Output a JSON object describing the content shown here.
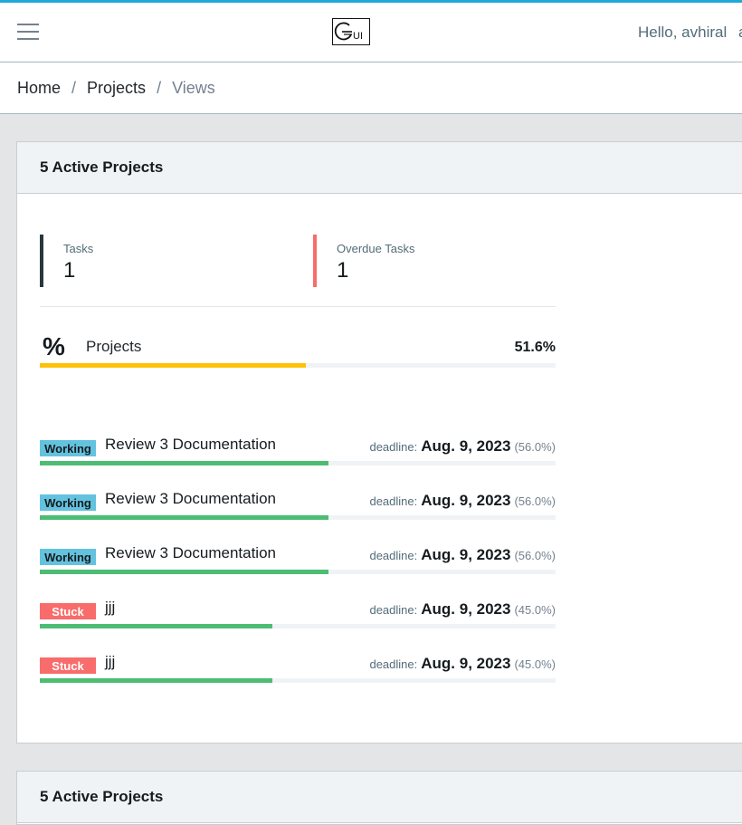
{
  "header": {
    "logo_text": "GUI",
    "greeting": "Hello, avhiral",
    "greeting_overflow": "a"
  },
  "breadcrumb": {
    "items": [
      {
        "label": "Home"
      },
      {
        "label": "Projects"
      },
      {
        "label": "Views"
      }
    ],
    "separator": "/"
  },
  "cards": [
    {
      "title": "5 Active Projects",
      "stats": {
        "tasks": {
          "label": "Tasks",
          "value": "1",
          "color": "#29363d"
        },
        "overdue": {
          "label": "Overdue Tasks",
          "value": "1",
          "color": "#f86c6b"
        }
      },
      "overall": {
        "icon": "%",
        "label": "Projects",
        "value": "51.6%",
        "percent": 51.6,
        "color": "#ffc107"
      },
      "tasks": [
        {
          "status": "Working",
          "name": "Review 3 Documentation",
          "deadline_label": "deadline:",
          "deadline": "Aug. 9, 2023",
          "pct_text": "(56.0%)",
          "percent": 56.0
        },
        {
          "status": "Working",
          "name": "Review 3 Documentation",
          "deadline_label": "deadline:",
          "deadline": "Aug. 9, 2023",
          "pct_text": "(56.0%)",
          "percent": 56.0
        },
        {
          "status": "Working",
          "name": "Review 3 Documentation",
          "deadline_label": "deadline:",
          "deadline": "Aug. 9, 2023",
          "pct_text": "(56.0%)",
          "percent": 56.0
        },
        {
          "status": "Stuck",
          "name": "jjj",
          "deadline_label": "deadline:",
          "deadline": "Aug. 9, 2023",
          "pct_text": "(45.0%)",
          "percent": 45.0
        },
        {
          "status": "Stuck",
          "name": "jjj",
          "deadline_label": "deadline:",
          "deadline": "Aug. 9, 2023",
          "pct_text": "(45.0%)",
          "percent": 45.0
        }
      ]
    },
    {
      "title": "5 Active Projects"
    }
  ],
  "colors": {
    "accent_top": "#20a8d8",
    "working": "#63c2de",
    "stuck": "#f86c6b",
    "progress": "#4dbd74",
    "overall_progress": "#ffc107"
  }
}
